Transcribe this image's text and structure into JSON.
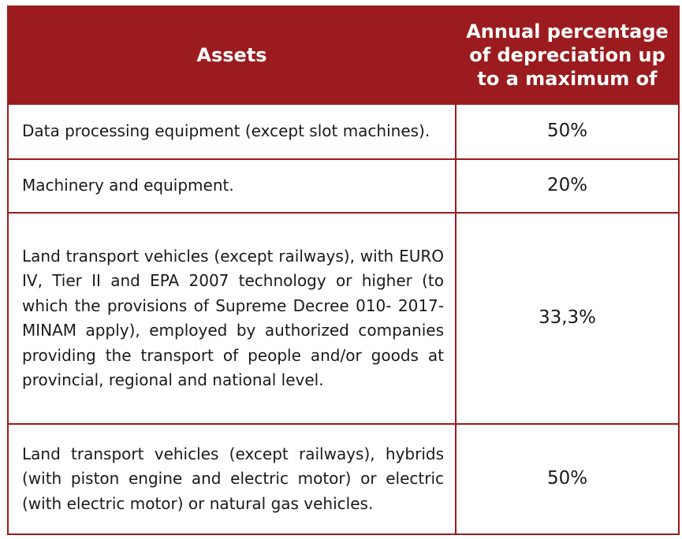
{
  "table": {
    "headers": {
      "assets": "Assets",
      "percentage": "Annual percentage of depreciation up to a maximum of"
    },
    "rows": [
      {
        "asset": "Data processing equipment (except slot machines).",
        "percentage": "50%"
      },
      {
        "asset": "Machinery and equipment.",
        "percentage": "20%"
      },
      {
        "asset": "Land transport vehicles (except railways), with EURO IV, Tier II and EPA 2007 technology or higher (to which the provisions of Supreme Decree 010- 2017-MINAM apply), employed by authorized companies providing the transport of people and/or goods at provincial, regional and national level.",
        "percentage": "33,3%"
      },
      {
        "asset": "Land transport vehicles (except railways), hybrids (with piston engine and electric motor) or electric (with electric motor) or natural gas vehicles.",
        "percentage": "50%"
      }
    ]
  },
  "colors": {
    "header_background": "#9b1b1e",
    "header_text": "#ffffff",
    "border": "#9b1b1e",
    "body_text": "#1a1a1a"
  }
}
